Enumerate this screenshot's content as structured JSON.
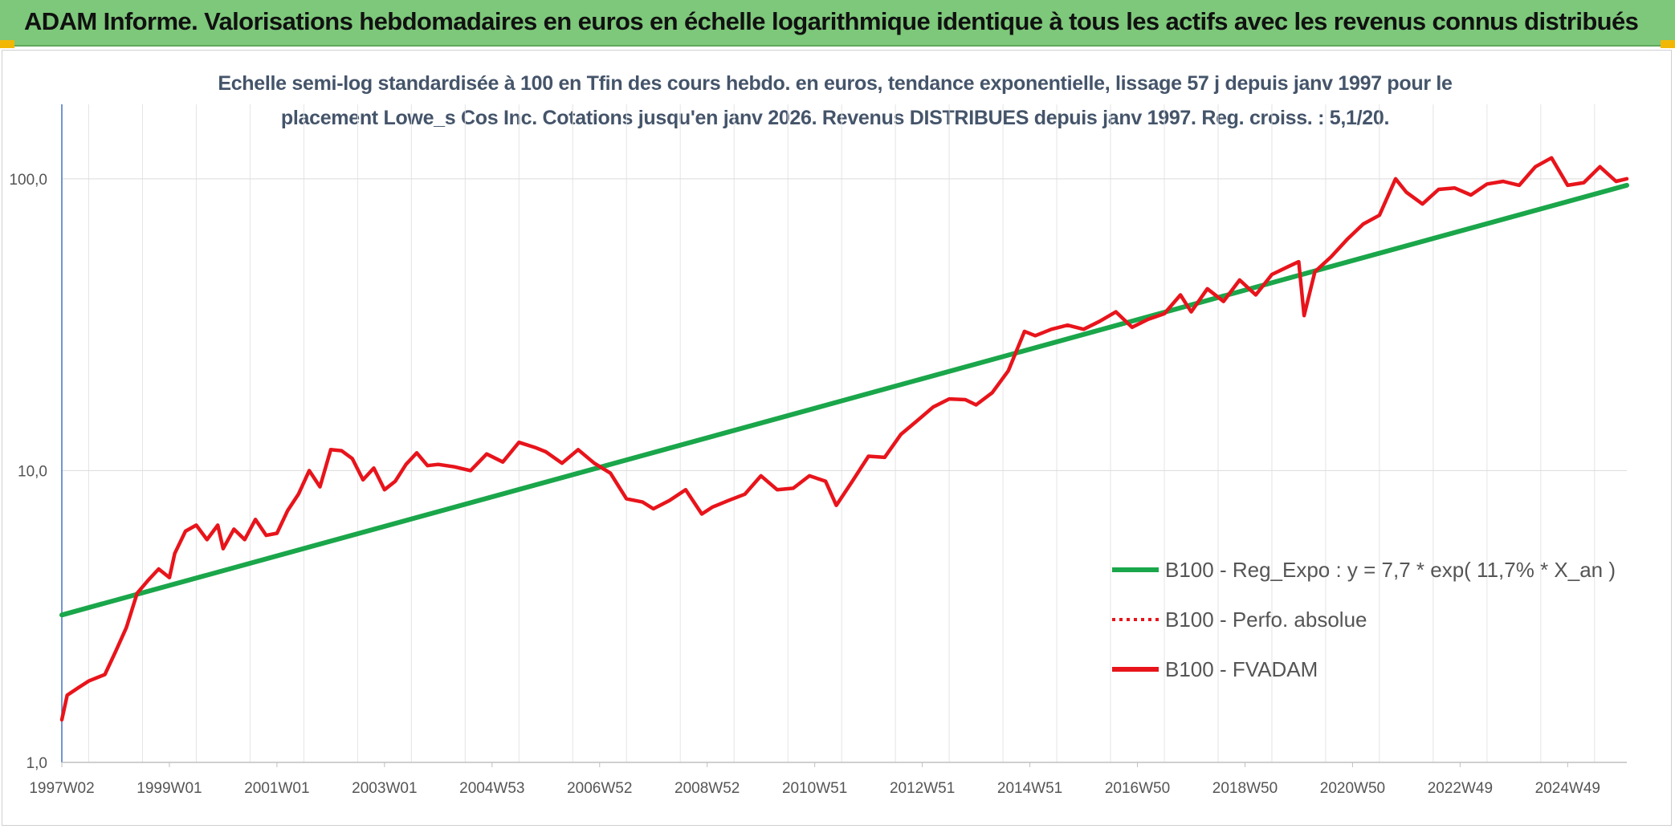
{
  "header": {
    "title": "ADAM Informe. Valorisations hebdomadaires en euros en échelle logarithmique identique à tous les actifs avec les revenus connus distribués"
  },
  "colors": {
    "banner": "#7dc87a",
    "accent_corner": "#f2b705",
    "regression": "#1aa64a",
    "price": "#e8141b",
    "subtitle": "#44546a"
  },
  "chart_data": {
    "type": "line",
    "subtitle_line1": "Echelle semi-log standardisée à 100 en Tfin des cours hebdo. en euros, tendance exponentielle, lissage 57 j depuis janv 1997 pour le",
    "subtitle_line2": "placement Lowe_s Cos Inc. Cotations jusqu'en janv 2026. Revenus DISTRIBUES depuis janv 1997. Reg. croiss. : 5,1/20.",
    "y_scale": "log",
    "ylim": [
      1,
      180
    ],
    "xlim": [
      1997.0,
      2026.1
    ],
    "y_ticks": [
      {
        "value": 1,
        "label": "1,0"
      },
      {
        "value": 10,
        "label": "10,0"
      },
      {
        "value": 100,
        "label": "100,0"
      }
    ],
    "x_ticks": [
      {
        "value": 1997.0,
        "label": "1997W02"
      },
      {
        "value": 1999.0,
        "label": "1999W01"
      },
      {
        "value": 2001.0,
        "label": "2001W01"
      },
      {
        "value": 2003.0,
        "label": "2003W01"
      },
      {
        "value": 2005.0,
        "label": "2004W53"
      },
      {
        "value": 2007.0,
        "label": "2006W52"
      },
      {
        "value": 2009.0,
        "label": "2008W52"
      },
      {
        "value": 2011.0,
        "label": "2010W51"
      },
      {
        "value": 2013.0,
        "label": "2012W51"
      },
      {
        "value": 2015.0,
        "label": "2014W51"
      },
      {
        "value": 2017.0,
        "label": "2016W50"
      },
      {
        "value": 2019.0,
        "label": "2018W50"
      },
      {
        "value": 2021.0,
        "label": "2020W50"
      },
      {
        "value": 2023.0,
        "label": "2022W49"
      },
      {
        "value": 2025.0,
        "label": "2024W49"
      }
    ],
    "grid": "vertical-and-horizontal",
    "legend_position": "center-right",
    "series": [
      {
        "name": "B100 - Reg_Expo : y = 7,7 * exp( 11,7% *  X_an )",
        "style": "solid",
        "color": "#1aa64a",
        "x": [
          1997.0,
          2026.1
        ],
        "y": [
          3.2,
          95
        ]
      },
      {
        "name": "B100 - Perfo. absolue",
        "style": "dotted",
        "color": "#e8141b",
        "x": [],
        "y": []
      },
      {
        "name": "B100 - FVADAM",
        "style": "solid",
        "color": "#e8141b",
        "x": [
          1997.0,
          1997.1,
          1997.3,
          1997.5,
          1997.8,
          1998.0,
          1998.2,
          1998.4,
          1998.6,
          1998.8,
          1999.0,
          1999.1,
          1999.3,
          1999.5,
          1999.7,
          1999.9,
          2000.0,
          2000.2,
          2000.4,
          2000.6,
          2000.8,
          2001.0,
          2001.2,
          2001.4,
          2001.6,
          2001.8,
          2002.0,
          2002.2,
          2002.4,
          2002.6,
          2002.8,
          2003.0,
          2003.2,
          2003.4,
          2003.6,
          2003.8,
          2004.0,
          2004.3,
          2004.6,
          2004.9,
          2005.2,
          2005.5,
          2005.8,
          2006.0,
          2006.3,
          2006.6,
          2006.9,
          2007.2,
          2007.5,
          2007.8,
          2008.0,
          2008.3,
          2008.6,
          2008.9,
          2009.1,
          2009.4,
          2009.7,
          2010.0,
          2010.3,
          2010.6,
          2010.9,
          2011.2,
          2011.4,
          2011.7,
          2012.0,
          2012.3,
          2012.6,
          2012.9,
          2013.2,
          2013.5,
          2013.8,
          2014.0,
          2014.3,
          2014.6,
          2014.9,
          2015.1,
          2015.4,
          2015.7,
          2016.0,
          2016.3,
          2016.6,
          2016.9,
          2017.2,
          2017.5,
          2017.8,
          2018.0,
          2018.3,
          2018.6,
          2018.9,
          2019.2,
          2019.5,
          2019.8,
          2020.0,
          2020.1,
          2020.3,
          2020.6,
          2020.9,
          2021.2,
          2021.5,
          2021.8,
          2022.0,
          2022.3,
          2022.6,
          2022.9,
          2023.2,
          2023.5,
          2023.8,
          2024.1,
          2024.4,
          2024.7,
          2025.0,
          2025.3,
          2025.6,
          2025.9,
          2026.1
        ],
        "y": [
          1.4,
          1.7,
          1.8,
          1.9,
          2.0,
          2.4,
          2.9,
          3.8,
          4.2,
          4.6,
          4.3,
          5.2,
          6.2,
          6.5,
          5.8,
          6.5,
          5.4,
          6.3,
          5.8,
          6.8,
          6.0,
          6.1,
          7.3,
          8.3,
          10.0,
          8.8,
          11.8,
          11.7,
          11.0,
          9.3,
          10.2,
          8.6,
          9.2,
          10.5,
          11.5,
          10.4,
          10.5,
          10.3,
          10.0,
          11.4,
          10.7,
          12.5,
          12.0,
          11.6,
          10.6,
          11.8,
          10.6,
          9.8,
          8.0,
          7.8,
          7.4,
          7.9,
          8.6,
          7.1,
          7.5,
          7.9,
          8.3,
          9.6,
          8.6,
          8.7,
          9.6,
          9.2,
          7.6,
          9.2,
          11.2,
          11.1,
          13.3,
          14.8,
          16.5,
          17.6,
          17.5,
          16.8,
          18.5,
          22.0,
          30.0,
          29.0,
          30.5,
          31.5,
          30.5,
          32.5,
          35.0,
          31.0,
          33.0,
          34.5,
          40.0,
          35.0,
          42.0,
          38.0,
          45.0,
          40.0,
          47.0,
          50.0,
          52.0,
          34.0,
          48.0,
          54.0,
          62.0,
          70.0,
          75.0,
          100.0,
          90.0,
          82.0,
          92.0,
          93.0,
          88.0,
          96.0,
          98.0,
          95.0,
          110.0,
          118.0,
          95.0,
          97.0,
          110.0,
          98.0,
          100.0
        ]
      }
    ]
  }
}
